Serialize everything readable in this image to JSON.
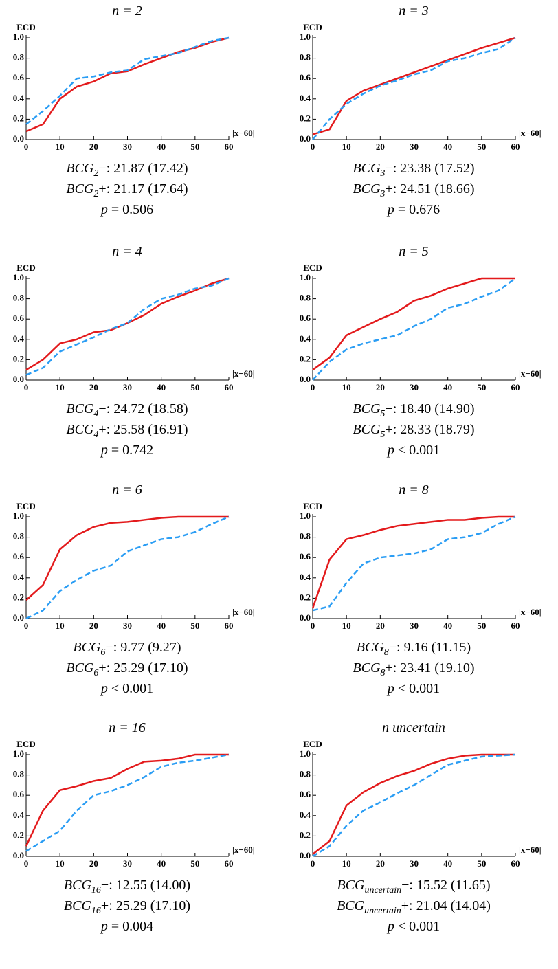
{
  "chart_data": [
    {
      "type": "line",
      "title": "n = 2",
      "ylabel": "ECD",
      "xlabel": "|x−60|",
      "xlim": [
        0,
        60
      ],
      "ylim": [
        0,
        1
      ],
      "xticks": [
        0,
        10,
        20,
        30,
        40,
        50,
        60
      ],
      "yticks": [
        {
          "value": 0,
          "label": "0.0"
        },
        0.2,
        0.4,
        0.6,
        0.8,
        {
          "value": 1,
          "label": "1.0"
        }
      ],
      "x": [
        0,
        5,
        10,
        15,
        20,
        25,
        30,
        35,
        40,
        45,
        50,
        55,
        60
      ],
      "series": [
        {
          "color": "#e31a1c",
          "style": "solid",
          "values": [
            0.08,
            0.15,
            0.4,
            0.52,
            0.57,
            0.65,
            0.67,
            0.74,
            0.8,
            0.86,
            0.9,
            0.96,
            1.0
          ]
        },
        {
          "color": "#2a9df4",
          "style": "dashed",
          "values": [
            0.15,
            0.28,
            0.43,
            0.6,
            0.62,
            0.66,
            0.68,
            0.79,
            0.82,
            0.85,
            0.91,
            0.97,
            1.0
          ]
        }
      ],
      "captions": [
        {
          "base": "BCG",
          "sub": "2",
          "rest": "−: 21.87 (17.42)"
        },
        {
          "base": "BCG",
          "sub": "2",
          "rest": "+: 21.17 (17.64)"
        },
        {
          "base": "p",
          "rest": " = 0.506"
        }
      ]
    },
    {
      "type": "line",
      "title": "n = 3",
      "ylabel": "ECD",
      "xlabel": "|x−60|",
      "xlim": [
        0,
        60
      ],
      "ylim": [
        0,
        1
      ],
      "xticks": [
        0,
        10,
        20,
        30,
        40,
        50,
        60
      ],
      "yticks": [
        {
          "value": 0,
          "label": "0.0"
        },
        0.2,
        0.4,
        0.6,
        0.8,
        {
          "value": 1,
          "label": "1.0"
        }
      ],
      "x": [
        0,
        5,
        10,
        15,
        20,
        25,
        30,
        35,
        40,
        45,
        50,
        55,
        60
      ],
      "series": [
        {
          "color": "#e31a1c",
          "style": "solid",
          "values": [
            0.05,
            0.1,
            0.38,
            0.48,
            0.54,
            0.6,
            0.66,
            0.72,
            0.78,
            0.84,
            0.9,
            0.95,
            1.0
          ]
        },
        {
          "color": "#2a9df4",
          "style": "dashed",
          "values": [
            0.0,
            0.2,
            0.35,
            0.45,
            0.53,
            0.58,
            0.64,
            0.68,
            0.77,
            0.8,
            0.85,
            0.89,
            1.0
          ]
        }
      ],
      "captions": [
        {
          "base": "BCG",
          "sub": "3",
          "rest": "−: 23.38 (17.52)"
        },
        {
          "base": "BCG",
          "sub": "3",
          "rest": "+: 24.51 (18.66)"
        },
        {
          "base": "p",
          "rest": " = 0.676"
        }
      ]
    },
    {
      "type": "line",
      "title": "n = 4",
      "ylabel": "ECD",
      "xlabel": "|x−60|",
      "xlim": [
        0,
        60
      ],
      "ylim": [
        0,
        1
      ],
      "xticks": [
        0,
        10,
        20,
        30,
        40,
        50,
        60
      ],
      "yticks": [
        {
          "value": 0,
          "label": "0.0"
        },
        0.2,
        0.4,
        0.6,
        0.8,
        {
          "value": 1,
          "label": "1.0"
        }
      ],
      "x": [
        0,
        5,
        10,
        15,
        20,
        25,
        30,
        35,
        40,
        45,
        50,
        55,
        60
      ],
      "series": [
        {
          "color": "#e31a1c",
          "style": "solid",
          "values": [
            0.1,
            0.2,
            0.36,
            0.4,
            0.47,
            0.49,
            0.56,
            0.64,
            0.75,
            0.82,
            0.88,
            0.95,
            1.0
          ]
        },
        {
          "color": "#2a9df4",
          "style": "dashed",
          "values": [
            0.05,
            0.12,
            0.28,
            0.35,
            0.42,
            0.5,
            0.56,
            0.7,
            0.8,
            0.84,
            0.9,
            0.93,
            1.0
          ]
        }
      ],
      "captions": [
        {
          "base": "BCG",
          "sub": "4",
          "rest": "−: 24.72 (18.58)"
        },
        {
          "base": "BCG",
          "sub": "4",
          "rest": "+: 25.58 (16.91)"
        },
        {
          "base": "p",
          "rest": " = 0.742"
        }
      ]
    },
    {
      "type": "line",
      "title": "n = 5",
      "ylabel": "ECD",
      "xlabel": "|x−60|",
      "xlim": [
        0,
        60
      ],
      "ylim": [
        0,
        1
      ],
      "xticks": [
        0,
        10,
        20,
        30,
        40,
        50,
        60
      ],
      "yticks": [
        {
          "value": 0,
          "label": "0.0"
        },
        0.2,
        0.4,
        0.6,
        0.8,
        {
          "value": 1,
          "label": "1.0"
        }
      ],
      "x": [
        0,
        5,
        10,
        15,
        20,
        25,
        30,
        35,
        40,
        45,
        50,
        55,
        60
      ],
      "series": [
        {
          "color": "#e31a1c",
          "style": "solid",
          "values": [
            0.1,
            0.22,
            0.44,
            0.52,
            0.6,
            0.67,
            0.78,
            0.83,
            0.9,
            0.95,
            1.0,
            1.0,
            1.0
          ]
        },
        {
          "color": "#2a9df4",
          "style": "dashed",
          "values": [
            0.0,
            0.18,
            0.3,
            0.36,
            0.4,
            0.44,
            0.53,
            0.6,
            0.71,
            0.75,
            0.82,
            0.88,
            1.0
          ]
        }
      ],
      "captions": [
        {
          "base": "BCG",
          "sub": "5",
          "rest": "−: 18.40 (14.90)"
        },
        {
          "base": "BCG",
          "sub": "5",
          "rest": "+: 28.33 (18.79)"
        },
        {
          "base": "p",
          "rest": " < 0.001"
        }
      ]
    },
    {
      "type": "line",
      "title": "n = 6",
      "ylabel": "ECD",
      "xlabel": "|x−60|",
      "xlim": [
        0,
        60
      ],
      "ylim": [
        0,
        1
      ],
      "xticks": [
        0,
        10,
        20,
        30,
        40,
        50,
        60
      ],
      "yticks": [
        {
          "value": 0,
          "label": "0.0"
        },
        0.2,
        0.4,
        0.6,
        0.8,
        {
          "value": 1,
          "label": "1.0"
        }
      ],
      "x": [
        0,
        5,
        10,
        15,
        20,
        25,
        30,
        35,
        40,
        45,
        50,
        55,
        60
      ],
      "series": [
        {
          "color": "#e31a1c",
          "style": "solid",
          "values": [
            0.18,
            0.33,
            0.68,
            0.82,
            0.9,
            0.94,
            0.95,
            0.97,
            0.99,
            1.0,
            1.0,
            1.0,
            1.0
          ]
        },
        {
          "color": "#2a9df4",
          "style": "dashed",
          "values": [
            0.0,
            0.08,
            0.27,
            0.38,
            0.47,
            0.52,
            0.66,
            0.72,
            0.78,
            0.8,
            0.85,
            0.93,
            1.0
          ]
        }
      ],
      "captions": [
        {
          "base": "BCG",
          "sub": "6",
          "rest": "−: 9.77 (9.27)"
        },
        {
          "base": "BCG",
          "sub": "6",
          "rest": "+: 25.29 (17.10)"
        },
        {
          "base": "p",
          "rest": " < 0.001"
        }
      ]
    },
    {
      "type": "line",
      "title": "n = 8",
      "ylabel": "ECD",
      "xlabel": "|x−60|",
      "xlim": [
        0,
        60
      ],
      "ylim": [
        0,
        1
      ],
      "xticks": [
        0,
        10,
        20,
        30,
        40,
        50,
        60
      ],
      "yticks": [
        {
          "value": 0,
          "label": "0.0"
        },
        0.2,
        0.4,
        0.6,
        0.8,
        {
          "value": 1,
          "label": "1.0"
        }
      ],
      "x": [
        0,
        5,
        10,
        15,
        20,
        25,
        30,
        35,
        40,
        45,
        50,
        55,
        60
      ],
      "series": [
        {
          "color": "#e31a1c",
          "style": "solid",
          "values": [
            0.1,
            0.58,
            0.78,
            0.82,
            0.87,
            0.91,
            0.93,
            0.95,
            0.97,
            0.97,
            0.99,
            1.0,
            1.0
          ]
        },
        {
          "color": "#2a9df4",
          "style": "dashed",
          "values": [
            0.08,
            0.12,
            0.35,
            0.54,
            0.6,
            0.62,
            0.64,
            0.68,
            0.78,
            0.8,
            0.84,
            0.93,
            1.0
          ]
        }
      ],
      "captions": [
        {
          "base": "BCG",
          "sub": "8",
          "rest": "−: 9.16 (11.15)"
        },
        {
          "base": "BCG",
          "sub": "8",
          "rest": "+: 23.41 (19.10)"
        },
        {
          "base": "p",
          "rest": " < 0.001"
        }
      ]
    },
    {
      "type": "line",
      "title": "n = 16",
      "ylabel": "ECD",
      "xlabel": "|x−60|",
      "xlim": [
        0,
        60
      ],
      "ylim": [
        0,
        1
      ],
      "xticks": [
        0,
        10,
        20,
        30,
        40,
        50,
        60
      ],
      "yticks": [
        {
          "value": 0,
          "label": "0.0"
        },
        0.2,
        0.4,
        0.6,
        0.8,
        {
          "value": 1,
          "label": "1.0"
        }
      ],
      "x": [
        0,
        5,
        10,
        15,
        20,
        25,
        30,
        35,
        40,
        45,
        50,
        55,
        60
      ],
      "series": [
        {
          "color": "#e31a1c",
          "style": "solid",
          "values": [
            0.1,
            0.45,
            0.65,
            0.69,
            0.74,
            0.77,
            0.86,
            0.93,
            0.94,
            0.96,
            1.0,
            1.0,
            1.0
          ]
        },
        {
          "color": "#2a9df4",
          "style": "dashed",
          "values": [
            0.05,
            0.15,
            0.25,
            0.45,
            0.6,
            0.64,
            0.7,
            0.78,
            0.88,
            0.92,
            0.94,
            0.97,
            1.0
          ]
        }
      ],
      "captions": [
        {
          "base": "BCG",
          "sub": "16",
          "rest": "−: 12.55 (14.00)"
        },
        {
          "base": "BCG",
          "sub": "16",
          "rest": "+: 25.29 (17.10)"
        },
        {
          "base": "p",
          "rest": " = 0.004"
        }
      ]
    },
    {
      "type": "line",
      "title": "n uncertain",
      "ylabel": "ECD",
      "xlabel": "|x−60|",
      "xlim": [
        0,
        60
      ],
      "ylim": [
        0,
        1
      ],
      "xticks": [
        0,
        10,
        20,
        30,
        40,
        50,
        60
      ],
      "yticks": [
        {
          "value": 0,
          "label": "0.0"
        },
        0.2,
        0.4,
        0.6,
        0.8,
        {
          "value": 1,
          "label": "1.0"
        }
      ],
      "x": [
        0,
        5,
        10,
        15,
        20,
        25,
        30,
        35,
        40,
        45,
        50,
        55,
        60
      ],
      "series": [
        {
          "color": "#e31a1c",
          "style": "solid",
          "values": [
            0.02,
            0.15,
            0.5,
            0.63,
            0.72,
            0.79,
            0.84,
            0.91,
            0.96,
            0.99,
            1.0,
            1.0,
            1.0
          ]
        },
        {
          "color": "#2a9df4",
          "style": "dashed",
          "values": [
            0.0,
            0.1,
            0.3,
            0.45,
            0.53,
            0.62,
            0.7,
            0.8,
            0.9,
            0.94,
            0.98,
            0.99,
            1.0
          ]
        }
      ],
      "captions": [
        {
          "base": "BCG",
          "sub": "uncertain",
          "rest": "−: 15.52 (11.65)"
        },
        {
          "base": "BCG",
          "sub": "uncertain",
          "rest": "+: 21.04 (14.04)"
        },
        {
          "base": "p",
          "rest": " < 0.001"
        }
      ]
    }
  ]
}
